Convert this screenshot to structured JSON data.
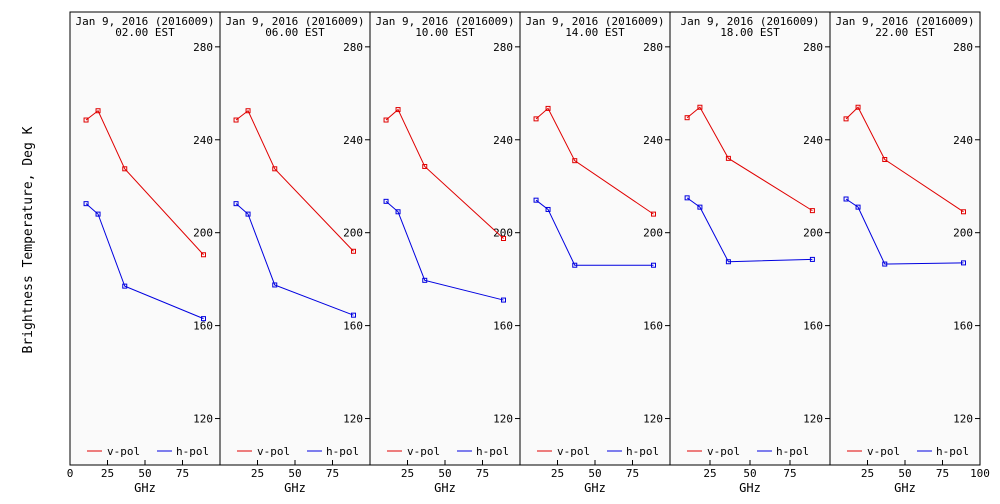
{
  "chart_data": {
    "type": "line",
    "ylabel": "Brightness Temperature, Deg K",
    "xlabel": "GHz",
    "ylim": [
      100,
      295
    ],
    "xlim": [
      0,
      100
    ],
    "yticks": [
      120,
      160,
      200,
      240,
      280
    ],
    "xticks": [
      0,
      25,
      50,
      75,
      100
    ],
    "legend": {
      "placement": "bottom"
    },
    "colors": {
      "v-pol": "#e00000",
      "h-pol": "#0000e0"
    },
    "x": [
      10.7,
      18.7,
      36.5,
      89.0
    ],
    "panels": [
      {
        "title_date": "Jan  9, 2016 (2016009)",
        "title_time": "02.00 EST",
        "series": [
          {
            "name": "v-pol",
            "values": [
              248.5,
              252.5,
              227.5,
              190.5
            ]
          },
          {
            "name": "h-pol",
            "values": [
              212.5,
              208.0,
              177.0,
              163.0
            ]
          }
        ]
      },
      {
        "title_date": "Jan  9, 2016 (2016009)",
        "title_time": "06.00 EST",
        "series": [
          {
            "name": "v-pol",
            "values": [
              248.5,
              252.5,
              227.5,
              192.0
            ]
          },
          {
            "name": "h-pol",
            "values": [
              212.5,
              208.0,
              177.5,
              164.5
            ]
          }
        ]
      },
      {
        "title_date": "Jan  9, 2016 (2016009)",
        "title_time": "10.00 EST",
        "series": [
          {
            "name": "v-pol",
            "values": [
              248.5,
              253.0,
              228.5,
              197.5
            ]
          },
          {
            "name": "h-pol",
            "values": [
              213.5,
              209.0,
              179.5,
              171.0
            ]
          }
        ]
      },
      {
        "title_date": "Jan  9, 2016 (2016009)",
        "title_time": "14.00 EST",
        "series": [
          {
            "name": "v-pol",
            "values": [
              249.0,
              253.5,
              231.0,
              208.0
            ]
          },
          {
            "name": "h-pol",
            "values": [
              214.0,
              210.0,
              186.0,
              186.0
            ]
          }
        ]
      },
      {
        "title_date": "Jan  9, 2016 (2016009)",
        "title_time": "18.00 EST",
        "series": [
          {
            "name": "v-pol",
            "values": [
              249.5,
              254.0,
              232.0,
              209.5
            ]
          },
          {
            "name": "h-pol",
            "values": [
              215.0,
              211.0,
              187.5,
              188.5
            ]
          }
        ]
      },
      {
        "title_date": "Jan  9, 2016 (2016009)",
        "title_time": "22.00 EST",
        "series": [
          {
            "name": "v-pol",
            "values": [
              249.0,
              254.0,
              231.5,
              209.0
            ]
          },
          {
            "name": "h-pol",
            "values": [
              214.5,
              211.0,
              186.5,
              187.0
            ]
          }
        ]
      }
    ]
  }
}
